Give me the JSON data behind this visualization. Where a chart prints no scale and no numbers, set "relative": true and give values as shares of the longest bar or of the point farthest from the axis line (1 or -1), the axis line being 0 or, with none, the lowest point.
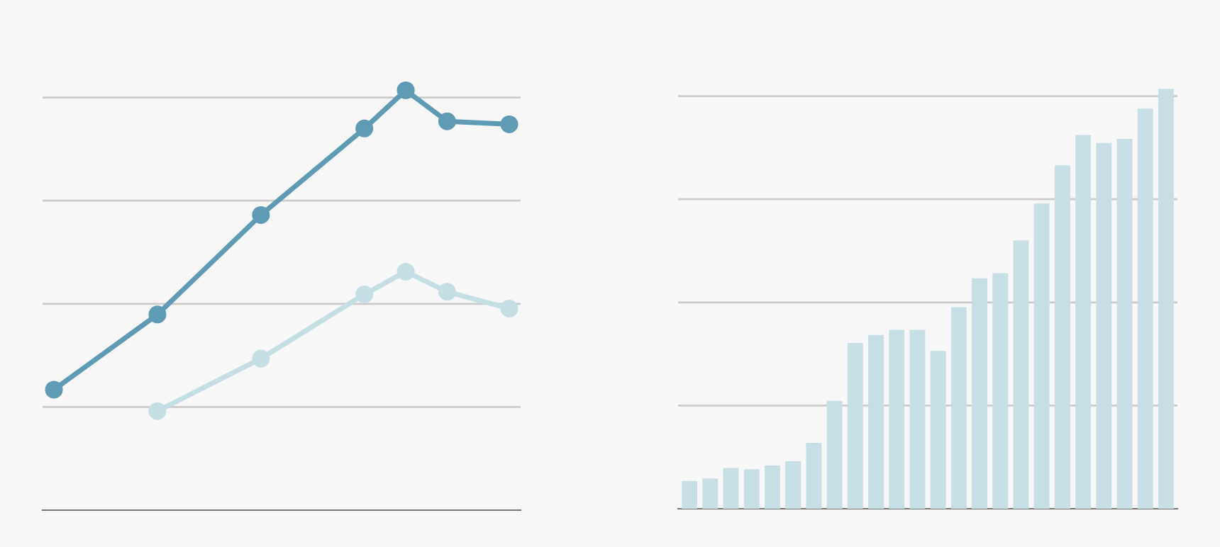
{
  "chart_data": [
    {
      "type": "line",
      "relative": true,
      "marker": "circle",
      "grid": "y",
      "categories": [
        null,
        null,
        null,
        null,
        null,
        null,
        null,
        null,
        null,
        null,
        null,
        null,
        null,
        null,
        null,
        null,
        null,
        null,
        null,
        null,
        null,
        null,
        null
      ],
      "series": [
        {
          "color": "#5f9bb5",
          "values": [
            0.287,
            null,
            null,
            null,
            null,
            0.466,
            null,
            null,
            null,
            null,
            0.703,
            null,
            null,
            null,
            null,
            0.909,
            null,
            1,
            null,
            0.926,
            null,
            null,
            0.919
          ]
        },
        {
          "color": "#c6dfe4",
          "values": [
            null,
            null,
            null,
            null,
            null,
            0.236,
            null,
            null,
            null,
            null,
            0.361,
            null,
            null,
            null,
            null,
            0.514,
            null,
            0.568,
            null,
            0.52,
            null,
            null,
            0.48
          ]
        }
      ]
    },
    {
      "type": "bar",
      "relative": true,
      "grid": "y",
      "categories": [
        null,
        null,
        null,
        null,
        null,
        null,
        null,
        null,
        null,
        null,
        null,
        null,
        null,
        null,
        null,
        null,
        null,
        null,
        null,
        null,
        null,
        null,
        null,
        null
      ],
      "color": "#c8e0e5",
      "values": [
        0.066,
        0.072,
        0.097,
        0.094,
        0.103,
        0.113,
        0.157,
        0.257,
        0.395,
        0.414,
        0.426,
        0.426,
        0.376,
        0.48,
        0.549,
        0.561,
        0.639,
        0.727,
        0.818,
        0.89,
        0.871,
        0.881,
        0.953,
        1
      ]
    }
  ]
}
